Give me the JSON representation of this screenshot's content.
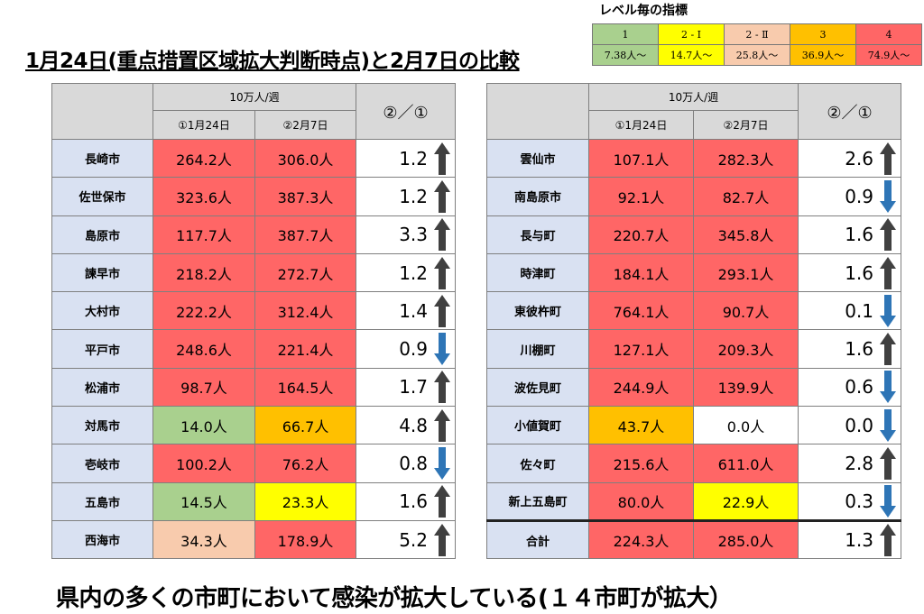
{
  "title": "1月24日(重点措置区域拡大判断時点)と2月7日の比較",
  "legend": {
    "title": "レベル毎の指標",
    "levels": [
      {
        "label": "1",
        "threshold": "7.38人～",
        "color": "#a9d08e"
      },
      {
        "label": "2 - Ⅰ",
        "threshold": "14.7人～",
        "color": "#ffff00"
      },
      {
        "label": "2 - Ⅱ",
        "threshold": "25.8人～",
        "color": "#f8cbad"
      },
      {
        "label": "3",
        "threshold": "36.9人～",
        "color": "#ffc000"
      },
      {
        "label": "4",
        "threshold": "74.9人～",
        "color": "#ff6666"
      }
    ]
  },
  "header": {
    "per100k": "10万人/週",
    "jan24": "①1月24日",
    "feb7": "②2月7日",
    "ratio": "②／①"
  },
  "left_rows": [
    {
      "name": "長崎市",
      "jan": "264.2人",
      "feb": "306.0人",
      "ratio": "1.2",
      "dir": "up",
      "jan_level": "4",
      "feb_level": "4"
    },
    {
      "name": "佐世保市",
      "jan": "323.6人",
      "feb": "387.3人",
      "ratio": "1.2",
      "dir": "up",
      "jan_level": "4",
      "feb_level": "4"
    },
    {
      "name": "島原市",
      "jan": "117.7人",
      "feb": "387.7人",
      "ratio": "3.3",
      "dir": "up",
      "jan_level": "4",
      "feb_level": "4"
    },
    {
      "name": "諫早市",
      "jan": "218.2人",
      "feb": "272.7人",
      "ratio": "1.2",
      "dir": "up",
      "jan_level": "4",
      "feb_level": "4"
    },
    {
      "name": "大村市",
      "jan": "222.2人",
      "feb": "312.4人",
      "ratio": "1.4",
      "dir": "up",
      "jan_level": "4",
      "feb_level": "4"
    },
    {
      "name": "平戸市",
      "jan": "248.6人",
      "feb": "221.4人",
      "ratio": "0.9",
      "dir": "down",
      "jan_level": "4",
      "feb_level": "4"
    },
    {
      "name": "松浦市",
      "jan": "98.7人",
      "feb": "164.5人",
      "ratio": "1.7",
      "dir": "up",
      "jan_level": "4",
      "feb_level": "4"
    },
    {
      "name": "対馬市",
      "jan": "14.0人",
      "feb": "66.7人",
      "ratio": "4.8",
      "dir": "up",
      "jan_level": "1",
      "feb_level": "3"
    },
    {
      "name": "壱岐市",
      "jan": "100.2人",
      "feb": "76.2人",
      "ratio": "0.8",
      "dir": "down",
      "jan_level": "4",
      "feb_level": "4"
    },
    {
      "name": "五島市",
      "jan": "14.5人",
      "feb": "23.3人",
      "ratio": "1.6",
      "dir": "up",
      "jan_level": "1",
      "feb_level": "2i"
    },
    {
      "name": "西海市",
      "jan": "34.3人",
      "feb": "178.9人",
      "ratio": "5.2",
      "dir": "up",
      "jan_level": "2ii",
      "feb_level": "4"
    }
  ],
  "right_rows": [
    {
      "name": "雲仙市",
      "jan": "107.1人",
      "feb": "282.3人",
      "ratio": "2.6",
      "dir": "up",
      "jan_level": "4",
      "feb_level": "4"
    },
    {
      "name": "南島原市",
      "jan": "92.1人",
      "feb": "82.7人",
      "ratio": "0.9",
      "dir": "down",
      "jan_level": "4",
      "feb_level": "4"
    },
    {
      "name": "長与町",
      "jan": "220.7人",
      "feb": "345.8人",
      "ratio": "1.6",
      "dir": "up",
      "jan_level": "4",
      "feb_level": "4"
    },
    {
      "name": "時津町",
      "jan": "184.1人",
      "feb": "293.1人",
      "ratio": "1.6",
      "dir": "up",
      "jan_level": "4",
      "feb_level": "4"
    },
    {
      "name": "東彼杵町",
      "jan": "764.1人",
      "feb": "90.7人",
      "ratio": "0.1",
      "dir": "down",
      "jan_level": "4",
      "feb_level": "4"
    },
    {
      "name": "川棚町",
      "jan": "127.1人",
      "feb": "209.3人",
      "ratio": "1.6",
      "dir": "up",
      "jan_level": "4",
      "feb_level": "4"
    },
    {
      "name": "波佐見町",
      "jan": "244.9人",
      "feb": "139.9人",
      "ratio": "0.6",
      "dir": "down",
      "jan_level": "4",
      "feb_level": "4"
    },
    {
      "name": "小値賀町",
      "jan": "43.7人",
      "feb": "0.0人",
      "ratio": "0.0",
      "dir": "down",
      "jan_level": "3",
      "feb_level": "0"
    },
    {
      "name": "佐々町",
      "jan": "215.6人",
      "feb": "611.0人",
      "ratio": "2.8",
      "dir": "up",
      "jan_level": "4",
      "feb_level": "4"
    },
    {
      "name": "新上五島町",
      "jan": "80.0人",
      "feb": "22.9人",
      "ratio": "0.3",
      "dir": "down",
      "jan_level": "4",
      "feb_level": "2i"
    },
    {
      "name": "合計",
      "jan": "224.3人",
      "feb": "285.0人",
      "ratio": "1.3",
      "dir": "up",
      "jan_level": "4",
      "feb_level": "4",
      "total": true
    }
  ],
  "conclusion": "県内の多くの市町において感染が拡大している(１４市町が拡大）",
  "colors": {
    "up_arrow": "#404040",
    "down_arrow": "#2e75b6",
    "name_bg": "#d9e1f2",
    "header_bg": "#d9d9d9"
  }
}
